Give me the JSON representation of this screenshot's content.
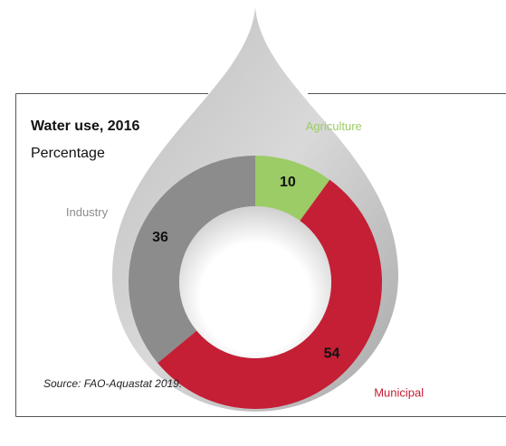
{
  "chart_data": {
    "type": "donut",
    "title": "Water use, 2016",
    "subtitle": "Percentage",
    "categories": [
      "Agriculture",
      "Municipal",
      "Industry"
    ],
    "values": [
      10,
      54,
      36
    ],
    "colors": [
      "#9ccc65",
      "#c41f35",
      "#8c8c8c"
    ],
    "source": "Source: FAO-Aquastat 2019."
  }
}
